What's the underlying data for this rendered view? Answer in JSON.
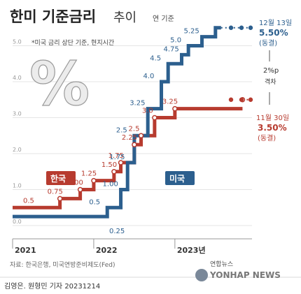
{
  "header": {
    "title_bold": "한미 기준금리",
    "title_light": "추이",
    "unit_label": "연 기준"
  },
  "note": "*미국 금리 상단 기준, 현지시간",
  "percent_sign": "%",
  "source": "자료: 한국은행, 미국연방준비제도(Fed)",
  "credit": "김영은. 원형민 기자  20231214",
  "logo": {
    "korean": "연합뉴스",
    "english": "YONHAP NEWS"
  },
  "colors": {
    "us": "#2c5f8e",
    "korea": "#b73b2f",
    "grid": "#dcdcdc",
    "axis": "#999999",
    "text": "#444444"
  },
  "chart_data": {
    "type": "line",
    "title": "한미 기준금리 추이",
    "ylabel": "연 기준",
    "ylim": [
      0,
      5.5
    ],
    "yticks": [
      "0.0",
      "1.0",
      "2.0",
      "3.0",
      "4.0",
      "5.0"
    ],
    "grid": true,
    "x_ticks": [
      "2021",
      "2022",
      "2023년"
    ],
    "legend": [
      "한국",
      "미국"
    ],
    "series": [
      {
        "name": "미국",
        "step": true,
        "points": [
          {
            "x": "2021-01",
            "y": 0.25
          },
          {
            "x": "2022-03",
            "y": 0.5
          },
          {
            "x": "2022-05",
            "y": 1.0
          },
          {
            "x": "2022-06",
            "y": 1.75
          },
          {
            "x": "2022-07",
            "y": 2.5
          },
          {
            "x": "2022-09",
            "y": 3.25
          },
          {
            "x": "2022-11",
            "y": 4.0
          },
          {
            "x": "2022-12",
            "y": 4.5
          },
          {
            "x": "2023-02",
            "y": 4.75
          },
          {
            "x": "2023-03",
            "y": 5.0
          },
          {
            "x": "2023-05",
            "y": 5.25
          },
          {
            "x": "2023-07",
            "y": 5.5
          },
          {
            "x": "2023-12",
            "y": 5.5
          }
        ],
        "labels": [
          "0.25",
          "0.5",
          "1.00",
          "1.75",
          "2.5",
          "3.25",
          "4.0",
          "4.5",
          "4.75",
          "5.0",
          "5.25"
        ]
      },
      {
        "name": "한국",
        "step": true,
        "points": [
          {
            "x": "2021-01",
            "y": 0.5
          },
          {
            "x": "2021-08",
            "y": 0.75
          },
          {
            "x": "2021-11",
            "y": 1.0
          },
          {
            "x": "2022-01",
            "y": 1.25
          },
          {
            "x": "2022-04",
            "y": 1.5
          },
          {
            "x": "2022-05",
            "y": 1.75
          },
          {
            "x": "2022-07",
            "y": 2.25
          },
          {
            "x": "2022-08",
            "y": 2.5
          },
          {
            "x": "2022-10",
            "y": 3.0
          },
          {
            "x": "2023-01",
            "y": 3.25
          },
          {
            "x": "2023-11",
            "y": 3.5
          }
        ],
        "labels": [
          "0.5",
          "0.75",
          "1.00",
          "1.25",
          "1.50",
          "1.75",
          "2.25",
          "2.5",
          "3.0",
          "3.25"
        ]
      }
    ],
    "annotations": {
      "us_end": {
        "date": "12월 13일",
        "rate": "5.50%",
        "status": "(동결)"
      },
      "kr_end": {
        "date": "11월 30일",
        "rate": "3.50%",
        "status": "(동결)"
      },
      "gap": {
        "value": "2%p",
        "label": "격차"
      }
    }
  }
}
